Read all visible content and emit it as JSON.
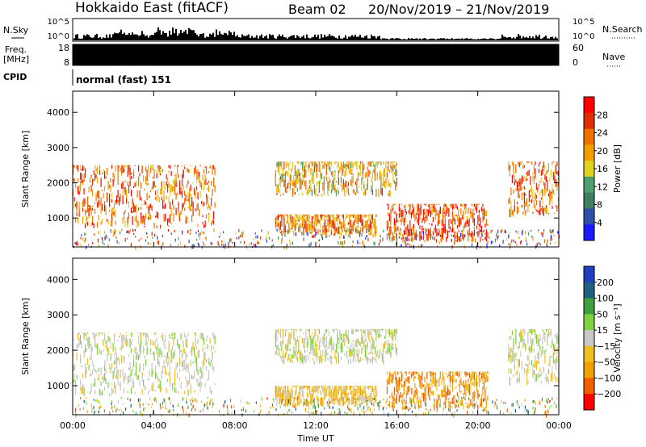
{
  "header": {
    "title": "Hokkaido East (fitACF)",
    "beam": "Beam 02",
    "date_range": "20/Nov/2019 – 21/Nov/2019"
  },
  "top_panels": {
    "nsky_label": "N.Sky",
    "nsky_tick_high": "10^5",
    "nsky_tick_low": "10^0",
    "nsky_right_high": "10^5",
    "nsky_right_low": "10^0",
    "nsearch_label": "N.Search",
    "freq_label_line1": "Freq.",
    "freq_label_line2": "[MHz]",
    "freq_tick_high": "18",
    "freq_tick_low": "8",
    "nave_label": "Nave",
    "nave_tick_high": "60",
    "nave_tick_low": "0",
    "cpid_label": "CPID",
    "cpid_value": "normal (fast) 151"
  },
  "colors": {
    "power_scale": [
      "#1a1aff",
      "#2e4fa8",
      "#3f7f5f",
      "#4f9f6f",
      "#e0d020",
      "#f0a000",
      "#f07000",
      "#e03000",
      "#ff0000"
    ],
    "velocity_scale": [
      "#2040c0",
      "#206080",
      "#40a040",
      "#80d040",
      "#c8c8c8",
      "#f0c020",
      "#f0a000",
      "#f06000",
      "#ff0000"
    ]
  },
  "chart_data": [
    {
      "type": "heatmap",
      "title": "Power",
      "xlabel": "",
      "ylabel": "Slant Range [km]",
      "x_ticks": [
        "00:00",
        "04:00",
        "08:00",
        "12:00",
        "16:00",
        "20:00",
        "00:00"
      ],
      "x_range_hours": [
        0,
        24
      ],
      "y_ticks": [
        "1000",
        "2000",
        "3000",
        "4000"
      ],
      "ylim": [
        180,
        4600
      ],
      "colorbar_label": "Power [dB]",
      "colorbar_ticks": [
        "4",
        "8",
        "12",
        "16",
        "20",
        "24",
        "28"
      ],
      "colorbar_range": [
        0,
        30
      ],
      "regions": [
        {
          "t0": 0.0,
          "t1": 7.0,
          "r0": 700,
          "r1": 2500,
          "v": 22
        },
        {
          "t0": 10.0,
          "t1": 16.0,
          "r0": 1600,
          "r1": 2600,
          "v": 18
        },
        {
          "t0": 10.0,
          "t1": 15.0,
          "r0": 500,
          "r1": 1100,
          "v": 20
        },
        {
          "t0": 15.5,
          "t1": 20.5,
          "r0": 300,
          "r1": 1400,
          "v": 24
        },
        {
          "t0": 21.5,
          "t1": 24.0,
          "r0": 1000,
          "r1": 2600,
          "v": 22
        }
      ]
    },
    {
      "type": "heatmap",
      "title": "Velocity",
      "xlabel": "Time UT",
      "ylabel": "Slant Range [km]",
      "x_ticks": [
        "00:00",
        "04:00",
        "08:00",
        "12:00",
        "16:00",
        "20:00",
        "00:00"
      ],
      "x_range_hours": [
        0,
        24
      ],
      "y_ticks": [
        "1000",
        "2000",
        "3000",
        "4000"
      ],
      "ylim": [
        180,
        4600
      ],
      "colorbar_label": "Velocity [m s⁻¹]",
      "colorbar_ticks": [
        "200",
        "100",
        "50",
        "15",
        "−15",
        "−50",
        "−100",
        "−200"
      ],
      "colorbar_range": [
        -250,
        250
      ],
      "regions": [
        {
          "t0": 0.0,
          "t1": 7.0,
          "r0": 700,
          "r1": 2500,
          "v": 0
        },
        {
          "t0": 10.0,
          "t1": 16.0,
          "r0": 1600,
          "r1": 2600,
          "v": 0
        },
        {
          "t0": 10.0,
          "t1": 15.0,
          "r0": 400,
          "r1": 1000,
          "v": -60
        },
        {
          "t0": 15.5,
          "t1": 20.5,
          "r0": 300,
          "r1": 1400,
          "v": -120
        },
        {
          "t0": 21.5,
          "t1": 24.0,
          "r0": 1000,
          "r1": 2600,
          "v": 0
        }
      ]
    }
  ]
}
